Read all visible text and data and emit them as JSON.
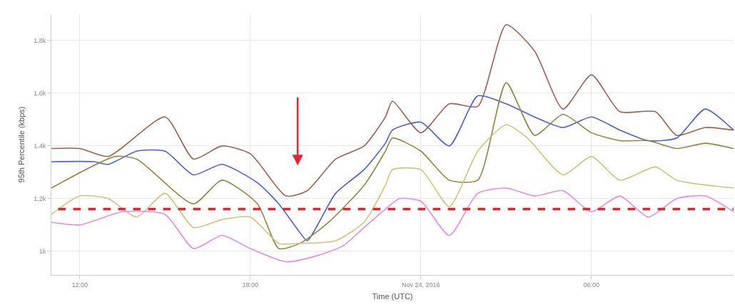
{
  "chart_data": {
    "type": "line",
    "xlabel": "Time (UTC)",
    "ylabel": "95th Percentile (kbps)",
    "xlim": [
      "2016-11-23T11:00",
      "2016-11-24T11:00"
    ],
    "xticks": [
      {
        "value": "2016-11-23T12:00",
        "label": "12:00"
      },
      {
        "value": "2016-11-23T18:00",
        "label": "18:00"
      },
      {
        "value": "2016-11-24T00:00",
        "label": "Nov 24, 2016"
      },
      {
        "value": "2016-11-24T06:00",
        "label": "06:00"
      }
    ],
    "ylim": [
      910,
      1900
    ],
    "yticks": [
      {
        "value": 1000,
        "label": "1k"
      },
      {
        "value": 1200,
        "label": "1.2k"
      },
      {
        "value": 1400,
        "label": "1.4k"
      },
      {
        "value": 1600,
        "label": "1.6k"
      },
      {
        "value": 1800,
        "label": "1.8k"
      }
    ],
    "grid": true,
    "legend": false,
    "marker": "none",
    "line_style": "solid",
    "series": [
      {
        "color": "#a0604f",
        "x": [
          "2016-11-23T11:00",
          "2016-11-23T12:00",
          "2016-11-23T13:00",
          "2016-11-23T15:00",
          "2016-11-23T16:00",
          "2016-11-23T17:00",
          "2016-11-23T18:00",
          "2016-11-23T19:15",
          "2016-11-23T20:00",
          "2016-11-23T21:00",
          "2016-11-23T22:00",
          "2016-11-23T22:45",
          "2016-11-23T23:00",
          "2016-11-24T00:00",
          "2016-11-24T01:00",
          "2016-11-24T02:00",
          "2016-11-24T03:00",
          "2016-11-24T04:00",
          "2016-11-24T05:00",
          "2016-11-24T06:00",
          "2016-11-24T07:00",
          "2016-11-24T08:15",
          "2016-11-24T09:00",
          "2016-11-24T10:00",
          "2016-11-24T11:00"
        ],
        "values": [
          1390,
          1390,
          1360,
          1510,
          1350,
          1400,
          1370,
          1210,
          1230,
          1350,
          1400,
          1510,
          1570,
          1450,
          1560,
          1550,
          1860,
          1760,
          1540,
          1670,
          1530,
          1530,
          1440,
          1470,
          1460
        ]
      },
      {
        "color": "#4a5fd8",
        "x": [
          "2016-11-23T11:00",
          "2016-11-23T12:30",
          "2016-11-23T13:00",
          "2016-11-23T14:00",
          "2016-11-23T15:00",
          "2016-11-23T16:00",
          "2016-11-23T17:00",
          "2016-11-23T18:15",
          "2016-11-23T19:00",
          "2016-11-23T19:45",
          "2016-11-23T20:00",
          "2016-11-23T21:00",
          "2016-11-23T22:00",
          "2016-11-23T22:45",
          "2016-11-23T23:00",
          "2016-11-24T00:00",
          "2016-11-24T01:00",
          "2016-11-24T02:00",
          "2016-11-24T03:00",
          "2016-11-24T04:00",
          "2016-11-24T05:00",
          "2016-11-24T06:00",
          "2016-11-24T07:00",
          "2016-11-24T08:00",
          "2016-11-24T09:00",
          "2016-11-24T10:00",
          "2016-11-24T11:00"
        ],
        "values": [
          1340,
          1340,
          1330,
          1380,
          1380,
          1290,
          1330,
          1260,
          1180,
          1070,
          1040,
          1220,
          1310,
          1410,
          1460,
          1490,
          1400,
          1590,
          1560,
          1510,
          1470,
          1510,
          1460,
          1420,
          1430,
          1540,
          1460
        ]
      },
      {
        "color": "#8e8a40",
        "x": [
          "2016-11-23T11:00",
          "2016-11-23T13:15",
          "2016-11-23T14:00",
          "2016-11-23T16:00",
          "2016-11-23T17:00",
          "2016-11-23T18:15",
          "2016-11-23T19:00",
          "2016-11-23T19:45",
          "2016-11-23T20:45",
          "2016-11-23T22:00",
          "2016-11-23T22:45",
          "2016-11-23T23:00",
          "2016-11-24T00:00",
          "2016-11-24T01:00",
          "2016-11-24T02:00",
          "2016-11-24T03:00",
          "2016-11-24T04:00",
          "2016-11-24T05:00",
          "2016-11-24T06:00",
          "2016-11-24T07:00",
          "2016-11-24T08:00",
          "2016-11-24T09:00",
          "2016-11-24T10:00",
          "2016-11-24T11:00"
        ],
        "values": [
          1240,
          1360,
          1350,
          1180,
          1270,
          1180,
          1010,
          1030,
          1110,
          1250,
          1380,
          1430,
          1380,
          1270,
          1270,
          1640,
          1440,
          1520,
          1450,
          1420,
          1420,
          1390,
          1410,
          1390
        ]
      },
      {
        "color": "#cfc47a",
        "x": [
          "2016-11-23T11:00",
          "2016-11-23T12:00",
          "2016-11-23T13:00",
          "2016-11-23T14:00",
          "2016-11-23T15:00",
          "2016-11-23T16:00",
          "2016-11-23T17:00",
          "2016-11-23T18:00",
          "2016-11-23T19:00",
          "2016-11-23T19:45",
          "2016-11-23T21:00",
          "2016-11-23T22:00",
          "2016-11-23T22:45",
          "2016-11-23T23:00",
          "2016-11-24T00:00",
          "2016-11-24T01:00",
          "2016-11-24T02:00",
          "2016-11-24T03:00",
          "2016-11-24T03:45",
          "2016-11-24T05:00",
          "2016-11-24T06:00",
          "2016-11-24T07:00",
          "2016-11-24T08:15",
          "2016-11-24T09:00",
          "2016-11-24T11:00"
        ],
        "values": [
          1140,
          1210,
          1200,
          1130,
          1220,
          1090,
          1120,
          1130,
          1030,
          1030,
          1040,
          1110,
          1250,
          1310,
          1310,
          1170,
          1380,
          1480,
          1430,
          1290,
          1360,
          1270,
          1320,
          1270,
          1240
        ]
      },
      {
        "color": "#e58be5",
        "x": [
          "2016-11-23T11:00",
          "2016-11-23T12:00",
          "2016-11-23T13:30",
          "2016-11-23T15:00",
          "2016-11-23T16:00",
          "2016-11-23T17:00",
          "2016-11-23T18:00",
          "2016-11-23T19:15",
          "2016-11-23T20:15",
          "2016-11-23T21:15",
          "2016-11-23T22:00",
          "2016-11-23T22:45",
          "2016-11-23T23:15",
          "2016-11-24T00:00",
          "2016-11-24T01:00",
          "2016-11-24T02:00",
          "2016-11-24T03:00",
          "2016-11-24T04:00",
          "2016-11-24T05:00",
          "2016-11-24T06:00",
          "2016-11-24T07:00",
          "2016-11-24T08:00",
          "2016-11-24T09:00",
          "2016-11-24T10:00",
          "2016-11-24T11:00"
        ],
        "values": [
          1110,
          1100,
          1150,
          1140,
          1010,
          1060,
          1010,
          960,
          980,
          1020,
          1090,
          1160,
          1200,
          1190,
          1060,
          1220,
          1240,
          1210,
          1230,
          1150,
          1210,
          1130,
          1200,
          1210,
          1150
        ]
      }
    ],
    "ref_lines": [
      {
        "axis": "y",
        "value": 1160,
        "color": "#e8202a",
        "line_style": "dashed"
      }
    ]
  }
}
